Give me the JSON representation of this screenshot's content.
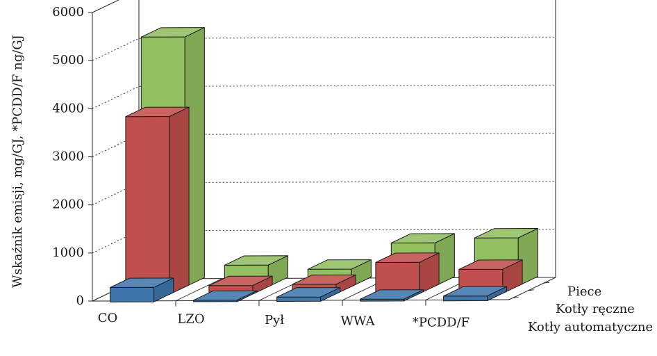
{
  "chart_data": {
    "type": "bar",
    "subtype": "3d-grouped-bar",
    "title": "",
    "ylabel": "Wskaźnik emisji, mg/GJ, *PCDD/F ng/GJ",
    "xlabel": "",
    "ylim": [
      0,
      6000
    ],
    "yticks": [
      "0",
      "1000",
      "2000",
      "3000",
      "4000",
      "5000",
      "6000"
    ],
    "grid": "dotted horizontal lines on back wall",
    "categories": [
      "CO",
      "LZO",
      "Pył",
      "WWA",
      "*PCDD/F"
    ],
    "series": [
      {
        "name": "Kotły automatyczne",
        "color": "#3f77ad",
        "values": [
          300,
          30,
          90,
          40,
          100
        ]
      },
      {
        "name": "Kotły ręczne",
        "color": "#c0504d",
        "values": [
          3700,
          180,
          200,
          650,
          500
        ]
      },
      {
        "name": "Piece",
        "color": "#92bf60",
        "values": [
          5200,
          450,
          360,
          900,
          1000
        ]
      }
    ]
  }
}
